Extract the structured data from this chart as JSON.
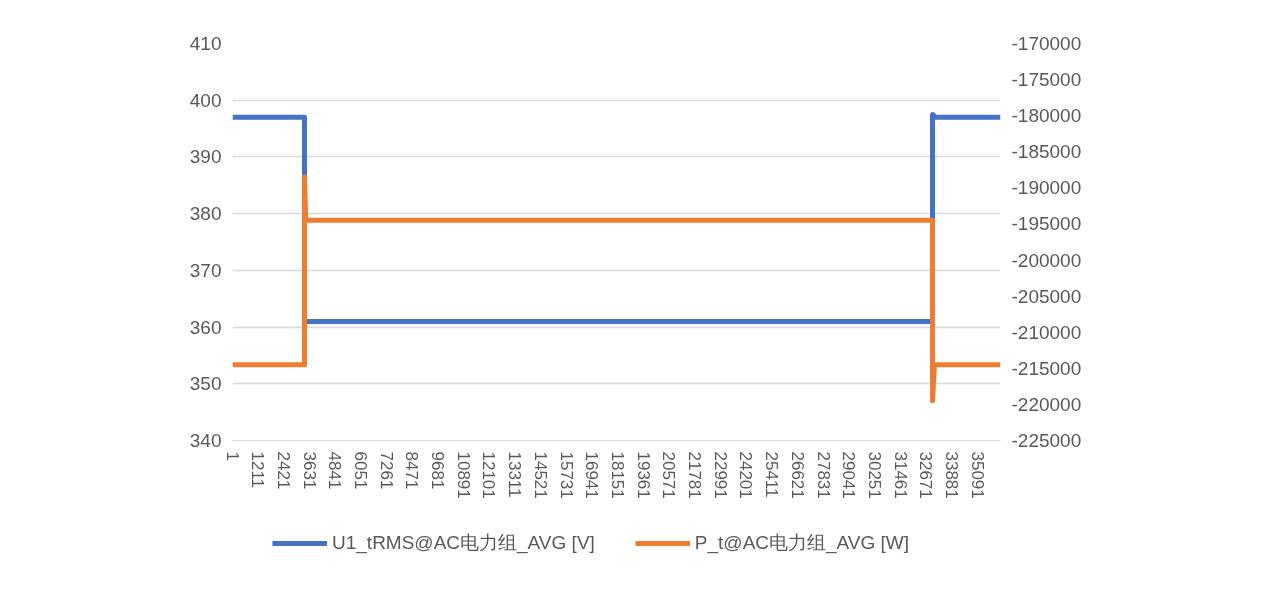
{
  "chart_data": {
    "type": "line",
    "xlim": [
      1,
      36160
    ],
    "xticks": [
      1,
      1211,
      2421,
      3631,
      4841,
      6051,
      7261,
      8471,
      9681,
      10891,
      12101,
      13311,
      14521,
      15731,
      16941,
      18151,
      19361,
      20571,
      21781,
      22991,
      24201,
      25411,
      26621,
      27831,
      29041,
      30251,
      31461,
      32671,
      33881,
      35091
    ],
    "ylim": [
      340,
      410
    ],
    "yticks": [
      340,
      350,
      360,
      370,
      380,
      390,
      400,
      410
    ],
    "y2lim": [
      -225000,
      -170000
    ],
    "y2ticks": [
      -225000,
      -220000,
      -215000,
      -210000,
      -205000,
      -200000,
      -195000,
      -190000,
      -185000,
      -180000,
      -175000,
      -170000
    ],
    "grid": "y",
    "legend": "bottom",
    "marker": "none",
    "line_style": "solid",
    "series": [
      {
        "name": "U1_tRMS@AC电力组_AVG [V]",
        "color": "#4472c4",
        "x": [
          1,
          3390,
          3390,
          32960,
          32960,
          33100,
          36160
        ],
        "values": [
          397,
          397,
          361,
          361,
          397.5,
          397,
          397
        ]
      },
      {
        "name": "P_t@AC电力组_AVG [W]",
        "color": "#ed7d31",
        "axis": "y2",
        "x": [
          1,
          3390,
          3390,
          3450,
          32960,
          32960,
          33050,
          36160
        ],
        "values": [
          -214500,
          -214500,
          -188500,
          -194500,
          -194500,
          -219500,
          -214500,
          -214500
        ]
      }
    ]
  }
}
